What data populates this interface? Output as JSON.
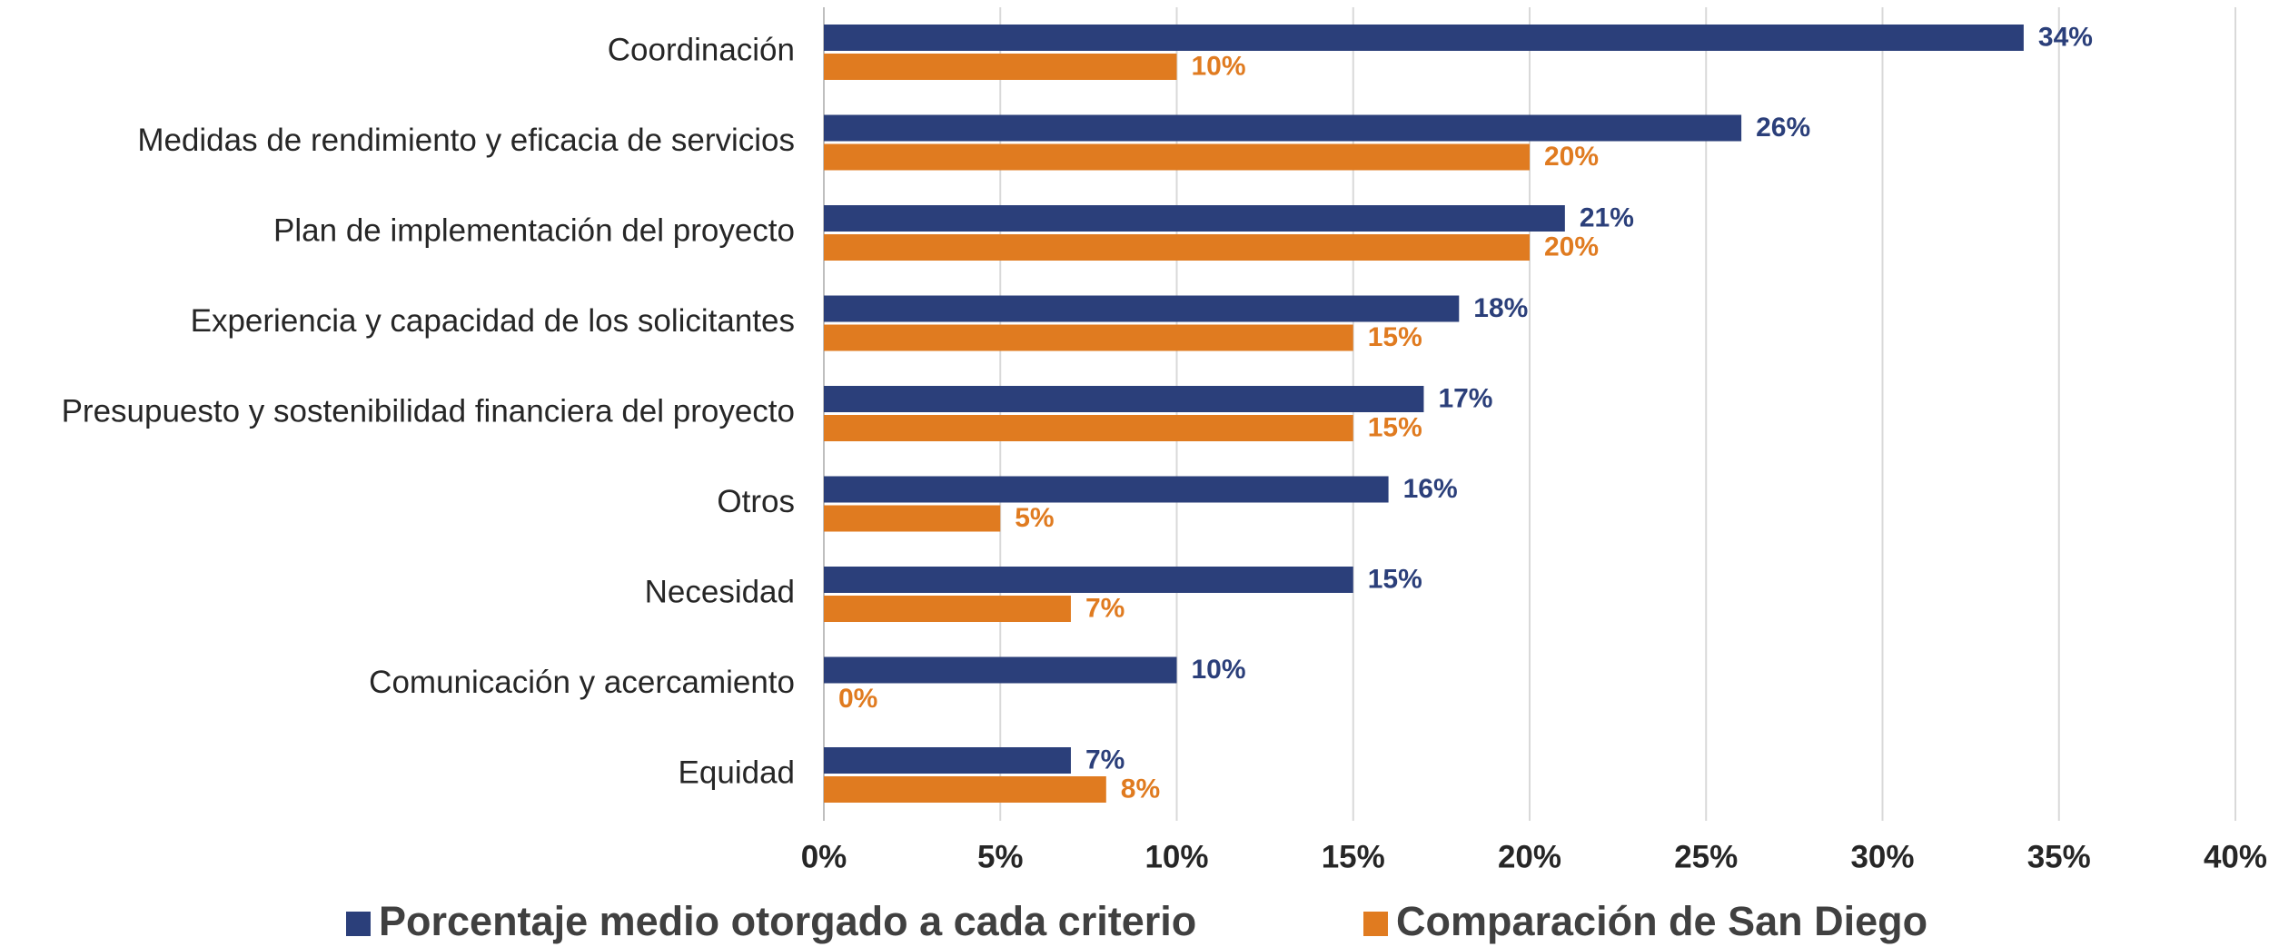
{
  "chart_data": {
    "type": "bar",
    "orientation": "horizontal",
    "categories": [
      "Coordinación",
      "Medidas de rendimiento y eficacia de servicios",
      "Plan de implementación del proyecto",
      "Experiencia y capacidad de los solicitantes",
      "Presupuesto y sostenibilidad financiera del proyecto",
      "Otros",
      "Necesidad",
      "Comunicación y acercamiento",
      "Equidad"
    ],
    "series": [
      {
        "name": "Porcentaje medio otorgado a cada criterio",
        "color": "#2b3f7a",
        "values": [
          34,
          26,
          21,
          18,
          17,
          16,
          15,
          10,
          7
        ],
        "value_labels": [
          "34%",
          "26%",
          "21%",
          "18%",
          "17%",
          "16%",
          "15%",
          "10%",
          "7%"
        ]
      },
      {
        "name": "Comparación de San Diego",
        "color": "#e07b20",
        "values": [
          10,
          20,
          20,
          15,
          15,
          5,
          7,
          0,
          8
        ],
        "value_labels": [
          "10%",
          "20%",
          "20%",
          "15%",
          "15%",
          "5%",
          "7%",
          "0%",
          "8%"
        ]
      }
    ],
    "xlim": [
      0,
      40
    ],
    "xticks": [
      {
        "value": 0,
        "label": "0%"
      },
      {
        "value": 5,
        "label": "5%"
      },
      {
        "value": 10,
        "label": "10%"
      },
      {
        "value": 15,
        "label": "15%"
      },
      {
        "value": 20,
        "label": "20%"
      },
      {
        "value": 25,
        "label": "25%"
      },
      {
        "value": 30,
        "label": "30%"
      },
      {
        "value": 35,
        "label": "35%"
      },
      {
        "value": 40,
        "label": "40%"
      }
    ],
    "grid": true,
    "legend": "bottom"
  }
}
